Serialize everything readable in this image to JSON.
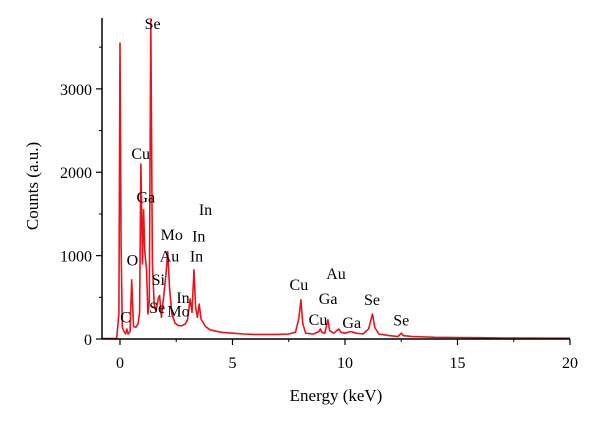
{
  "chart_data": {
    "type": "line",
    "xlabel": "Energy (keV)",
    "ylabel": "Counts (a.u.)",
    "xlim": [
      -0.8,
      20
    ],
    "ylim": [
      0,
      3850
    ],
    "xticks": [
      0,
      5,
      10,
      15,
      20
    ],
    "yticks": [
      0,
      1000,
      2000,
      3000
    ],
    "line_color": "#e8141c",
    "grid": false,
    "series": [
      {
        "values_description_free": true,
        "points": [
          [
            -0.8,
            5
          ],
          [
            -0.15,
            5
          ],
          [
            -0.05,
            300
          ],
          [
            0.0,
            3550
          ],
          [
            0.05,
            1100
          ],
          [
            0.1,
            140
          ],
          [
            0.18,
            90
          ],
          [
            0.25,
            60
          ],
          [
            0.3,
            120
          ],
          [
            0.36,
            60
          ],
          [
            0.45,
            90
          ],
          [
            0.52,
            710
          ],
          [
            0.6,
            150
          ],
          [
            0.7,
            140
          ],
          [
            0.8,
            180
          ],
          [
            0.87,
            320
          ],
          [
            0.93,
            2100
          ],
          [
            1.0,
            900
          ],
          [
            1.05,
            1550
          ],
          [
            1.1,
            1050
          ],
          [
            1.18,
            820
          ],
          [
            1.24,
            300
          ],
          [
            1.3,
            450
          ],
          [
            1.37,
            3820
          ],
          [
            1.44,
            900
          ],
          [
            1.52,
            420
          ],
          [
            1.6,
            330
          ],
          [
            1.7,
            490
          ],
          [
            1.76,
            520
          ],
          [
            1.84,
            260
          ],
          [
            1.93,
            480
          ],
          [
            2.0,
            660
          ],
          [
            2.05,
            800
          ],
          [
            2.12,
            1050
          ],
          [
            2.2,
            620
          ],
          [
            2.3,
            300
          ],
          [
            2.45,
            190
          ],
          [
            2.6,
            160
          ],
          [
            2.75,
            160
          ],
          [
            2.9,
            180
          ],
          [
            3.0,
            230
          ],
          [
            3.12,
            480
          ],
          [
            3.2,
            320
          ],
          [
            3.29,
            830
          ],
          [
            3.36,
            380
          ],
          [
            3.44,
            260
          ],
          [
            3.52,
            420
          ],
          [
            3.6,
            240
          ],
          [
            3.8,
            150
          ],
          [
            4.0,
            110
          ],
          [
            4.5,
            80
          ],
          [
            5.0,
            70
          ],
          [
            5.5,
            60
          ],
          [
            6.0,
            55
          ],
          [
            6.5,
            55
          ],
          [
            7.0,
            55
          ],
          [
            7.5,
            60
          ],
          [
            7.8,
            80
          ],
          [
            7.95,
            250
          ],
          [
            8.04,
            470
          ],
          [
            8.12,
            190
          ],
          [
            8.25,
            70
          ],
          [
            8.6,
            60
          ],
          [
            8.85,
            90
          ],
          [
            8.9,
            120
          ],
          [
            8.97,
            80
          ],
          [
            9.1,
            70
          ],
          [
            9.24,
            230
          ],
          [
            9.32,
            100
          ],
          [
            9.5,
            70
          ],
          [
            9.72,
            120
          ],
          [
            9.82,
            80
          ],
          [
            10.0,
            70
          ],
          [
            10.25,
            90
          ],
          [
            10.5,
            70
          ],
          [
            10.8,
            60
          ],
          [
            11.05,
            120
          ],
          [
            11.22,
            300
          ],
          [
            11.32,
            140
          ],
          [
            11.5,
            60
          ],
          [
            12.0,
            40
          ],
          [
            12.35,
            30
          ],
          [
            12.5,
            70
          ],
          [
            12.6,
            40
          ],
          [
            13.0,
            30
          ],
          [
            14.0,
            20
          ],
          [
            15.0,
            18
          ],
          [
            16.0,
            15
          ],
          [
            17.0,
            12
          ],
          [
            18.0,
            12
          ],
          [
            19.0,
            10
          ],
          [
            20.0,
            10
          ]
        ]
      }
    ],
    "annotations": [
      {
        "text": "Se",
        "x": 1.45,
        "y": 3720
      },
      {
        "text": "Cu",
        "x": 0.92,
        "y": 2160
      },
      {
        "text": "Ga",
        "x": 1.15,
        "y": 1640
      },
      {
        "text": "In",
        "x": 3.8,
        "y": 1490
      },
      {
        "text": "Mo",
        "x": 2.3,
        "y": 1190
      },
      {
        "text": "In",
        "x": 3.5,
        "y": 1170
      },
      {
        "text": "O",
        "x": 0.55,
        "y": 880
      },
      {
        "text": "Au",
        "x": 2.2,
        "y": 930
      },
      {
        "text": "In",
        "x": 3.4,
        "y": 930
      },
      {
        "text": "Si",
        "x": 1.7,
        "y": 650
      },
      {
        "text": "In",
        "x": 2.8,
        "y": 430
      },
      {
        "text": "Se",
        "x": 1.65,
        "y": 310
      },
      {
        "text": "Mo",
        "x": 2.6,
        "y": 270
      },
      {
        "text": "C",
        "x": 0.25,
        "y": 200
      },
      {
        "text": "Cu",
        "x": 7.95,
        "y": 590
      },
      {
        "text": "Au",
        "x": 9.6,
        "y": 720
      },
      {
        "text": "Ga",
        "x": 9.25,
        "y": 420
      },
      {
        "text": "Se",
        "x": 11.2,
        "y": 410
      },
      {
        "text": "Cu",
        "x": 8.8,
        "y": 170
      },
      {
        "text": "Ga",
        "x": 10.3,
        "y": 130
      },
      {
        "text": "Se",
        "x": 12.5,
        "y": 160
      }
    ]
  }
}
